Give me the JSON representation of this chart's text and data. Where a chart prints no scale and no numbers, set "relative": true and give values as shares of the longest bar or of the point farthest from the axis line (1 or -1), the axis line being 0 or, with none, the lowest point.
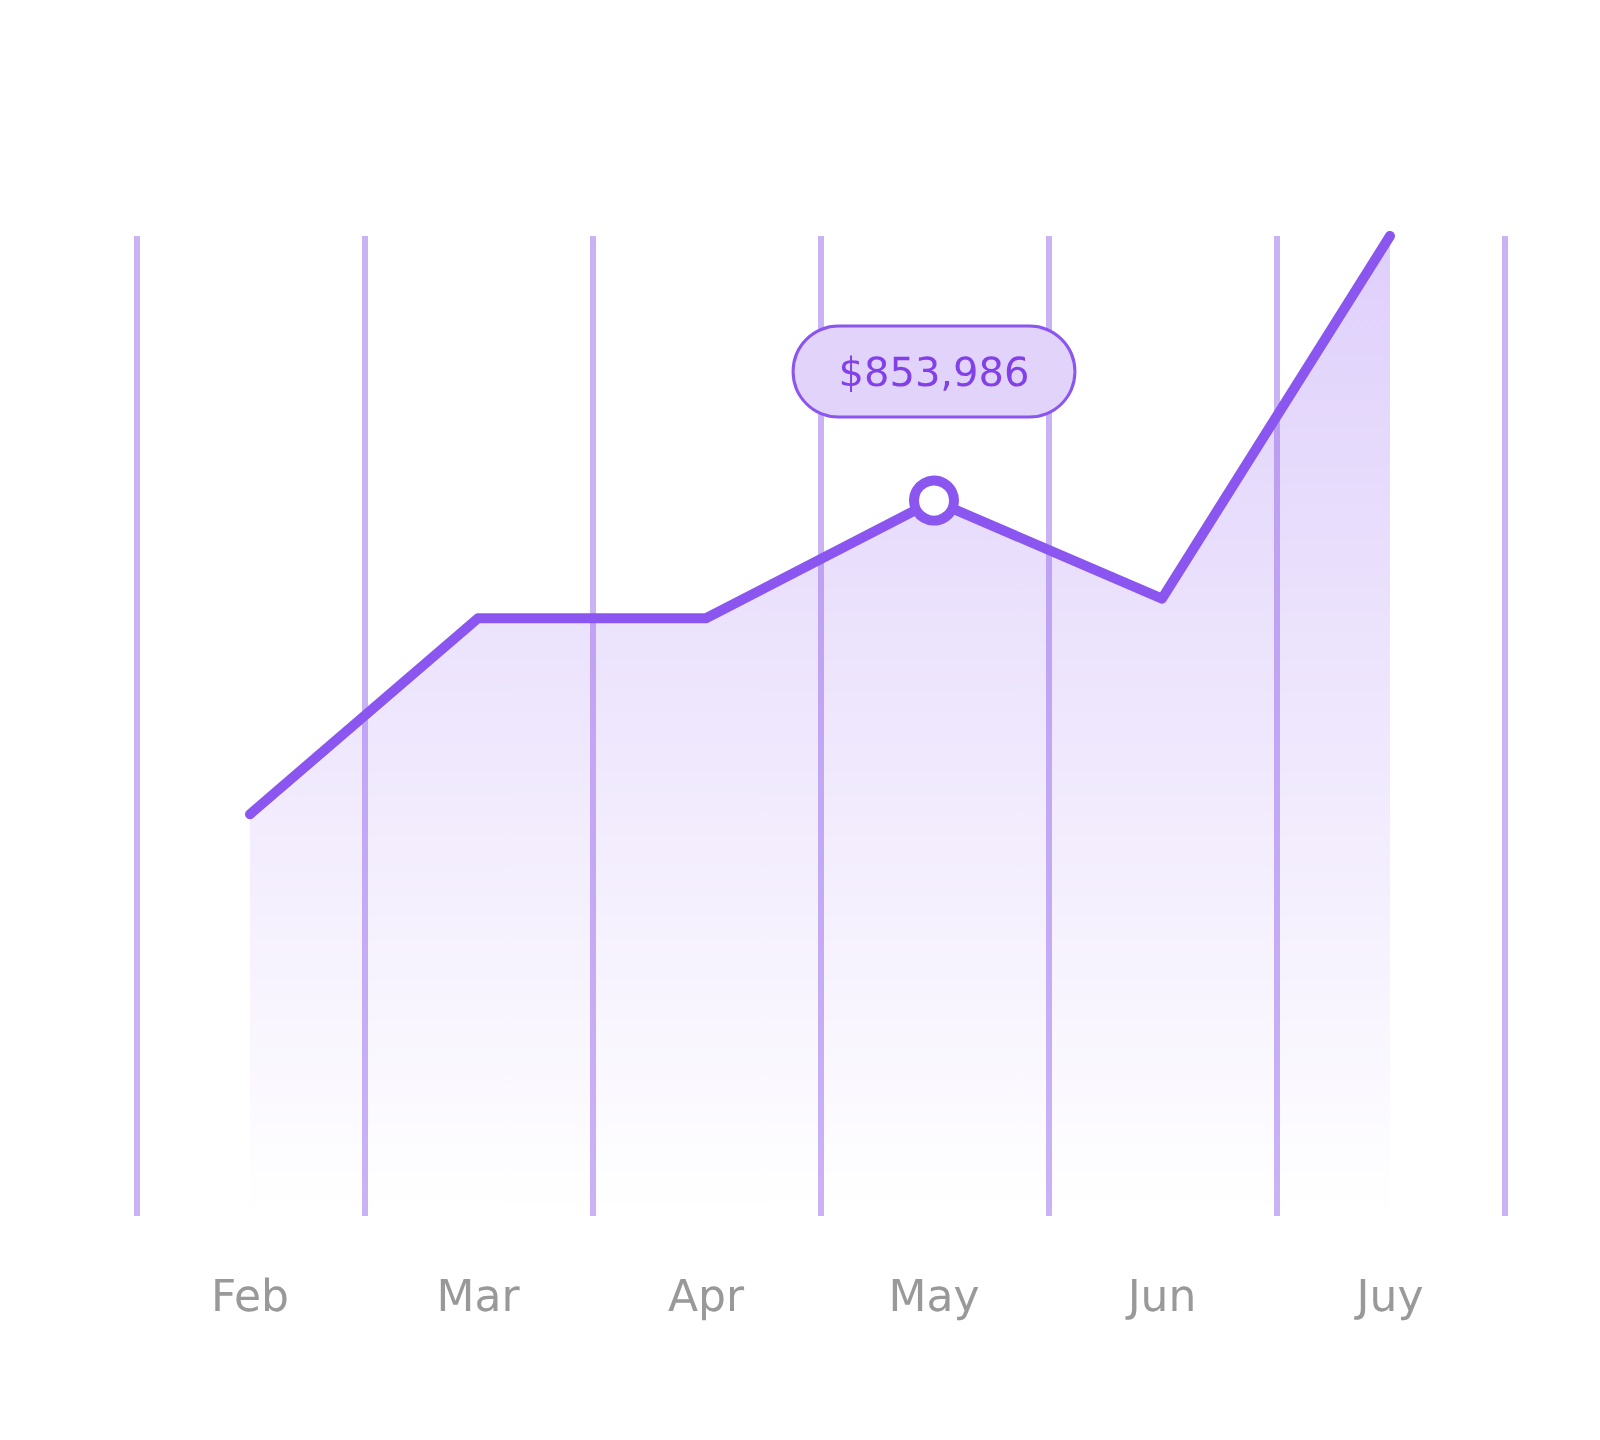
{
  "chart_data": {
    "type": "area",
    "relative": true,
    "categories": [
      "Feb",
      "Mar",
      "Apr",
      "May",
      "Jun",
      "Juy"
    ],
    "series": [
      {
        "color": "#8b55f0",
        "values": [
          0.41,
          0.61,
          0.61,
          0.73,
          0.63,
          1
        ]
      }
    ],
    "annotations": [
      {
        "text": "$853,986",
        "x": "May",
        "y": 0.73
      }
    ],
    "grid": "x",
    "marker": "none",
    "line_style": "solid"
  }
}
